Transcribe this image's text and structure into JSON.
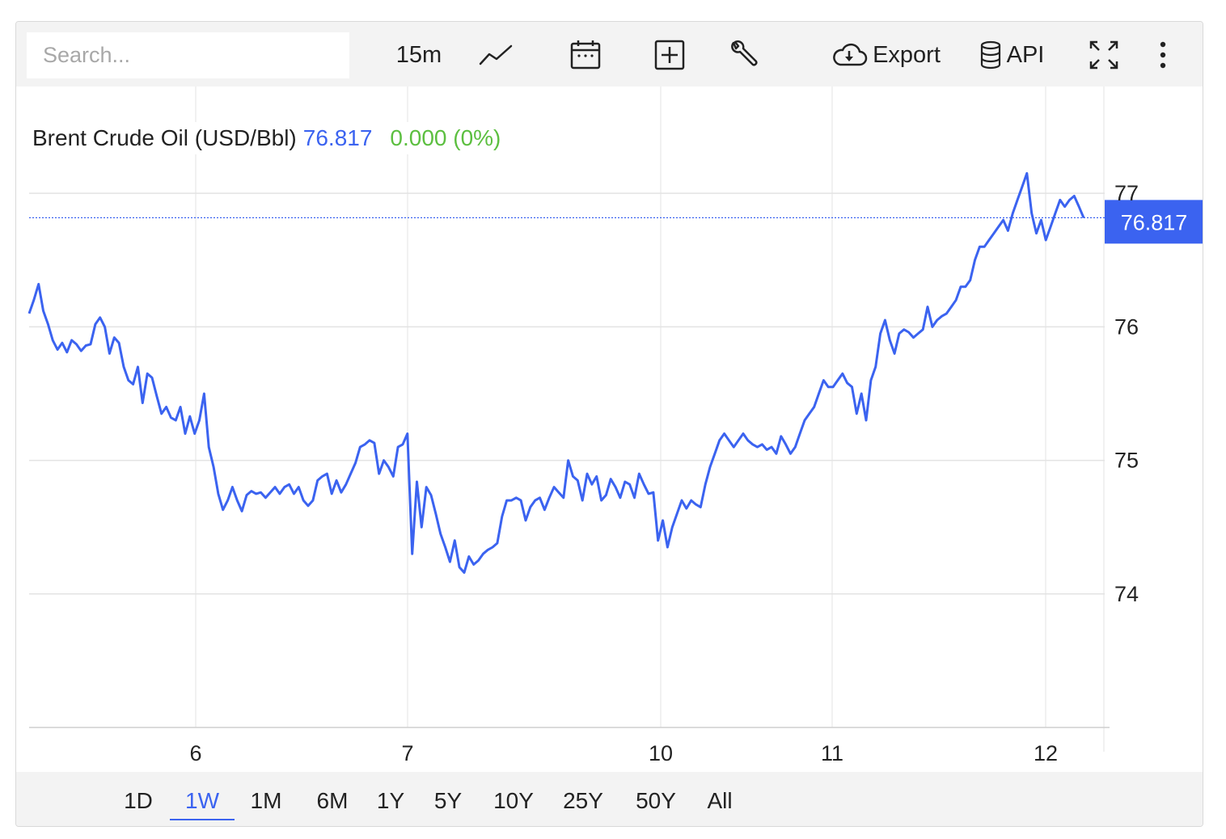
{
  "toolbar": {
    "search_placeholder": "Search...",
    "interval": "15m",
    "export_label": "Export",
    "api_label": "API",
    "icons": [
      "line-chart-icon",
      "calendar-icon",
      "add-compare-icon",
      "wrench-icon",
      "cloud-download-icon",
      "database-icon",
      "fullscreen-icon",
      "more-vertical-icon"
    ]
  },
  "header": {
    "name": "Brent Crude Oil (USD/Bbl)",
    "price": "76.817",
    "change": "0.000 (0%)"
  },
  "colors": {
    "line": "#3b63f0",
    "change_positive": "#5cbf40",
    "grid": "#e3e3e3",
    "toolbar_bg": "#f3f3f3"
  },
  "chart_data": {
    "type": "line",
    "title": "Brent Crude Oil (USD/Bbl)",
    "xlabel": "",
    "ylabel": "",
    "ylim": [
      73,
      77.8
    ],
    "y_ticks": [
      "77",
      "76",
      "75",
      "74"
    ],
    "x_ticks": [
      "6",
      "7",
      "10",
      "11",
      "12"
    ],
    "last_value": "76.817",
    "grid": true,
    "series": [
      {
        "values": [
          76.1,
          76.2,
          76.32,
          76.12,
          76.02,
          75.9,
          75.83,
          75.88,
          75.81,
          75.9,
          75.87,
          75.82,
          75.86,
          75.87,
          76.02,
          76.07,
          76.0,
          75.8,
          75.92,
          75.88,
          75.7,
          75.6,
          75.57,
          75.7,
          75.43,
          75.65,
          75.62,
          75.48,
          75.35,
          75.4,
          75.32,
          75.3,
          75.4,
          75.2,
          75.33,
          75.2,
          75.3,
          75.5,
          75.1,
          74.95,
          74.75,
          74.63,
          74.7,
          74.8,
          74.7,
          74.62,
          74.74,
          74.77,
          74.75,
          74.76,
          74.72,
          74.76,
          74.8,
          74.75,
          74.8,
          74.82,
          74.75,
          74.8,
          74.7,
          74.66,
          74.7,
          74.85,
          74.88,
          74.9,
          74.75,
          74.85,
          74.76,
          74.82,
          74.9,
          74.98,
          75.1,
          75.12,
          75.15,
          75.13,
          74.9,
          75.0,
          74.95,
          74.88,
          75.1,
          75.12,
          75.2,
          74.3,
          74.84,
          74.5,
          74.8,
          74.74,
          74.6,
          74.45,
          74.35,
          74.24,
          74.4,
          74.2,
          74.16,
          74.28,
          74.22,
          74.25,
          74.3,
          74.33,
          74.35,
          74.38,
          74.58,
          74.7,
          74.7,
          74.72,
          74.7,
          74.55,
          74.65,
          74.7,
          74.72,
          74.63,
          74.72,
          74.8,
          74.76,
          74.72,
          75.0,
          74.88,
          74.85,
          74.7,
          74.9,
          74.82,
          74.88,
          74.7,
          74.74,
          74.86,
          74.8,
          74.72,
          74.84,
          74.82,
          74.72,
          74.9,
          74.82,
          74.75,
          74.76,
          74.4,
          74.55,
          74.35,
          74.5,
          74.6,
          74.7,
          74.64,
          74.7,
          74.67,
          74.65,
          74.82,
          74.95,
          75.05,
          75.15,
          75.2,
          75.15,
          75.1,
          75.15,
          75.2,
          75.15,
          75.12,
          75.1,
          75.12,
          75.08,
          75.1,
          75.05,
          75.18,
          75.12,
          75.05,
          75.1,
          75.2,
          75.3,
          75.35,
          75.4,
          75.5,
          75.6,
          75.55,
          75.55,
          75.6,
          75.65,
          75.58,
          75.55,
          75.35,
          75.5,
          75.3,
          75.6,
          75.7,
          75.95,
          76.05,
          75.9,
          75.8,
          75.95,
          75.98,
          75.96,
          75.92,
          75.95,
          75.98,
          76.15,
          76.0,
          76.05,
          76.08,
          76.1,
          76.15,
          76.2,
          76.3,
          76.3,
          76.35,
          76.5,
          76.6,
          76.6,
          76.65,
          76.7,
          76.75,
          76.8,
          76.72,
          76.85,
          76.95,
          77.05,
          77.15,
          76.85,
          76.7,
          76.8,
          76.65,
          76.75,
          76.85,
          76.95,
          76.9,
          76.95,
          76.98,
          76.9,
          76.817
        ]
      }
    ]
  },
  "range_buttons": {
    "items": [
      "1D",
      "1W",
      "1M",
      "6M",
      "1Y",
      "5Y",
      "10Y",
      "25Y",
      "50Y",
      "All"
    ],
    "active": "1W"
  }
}
